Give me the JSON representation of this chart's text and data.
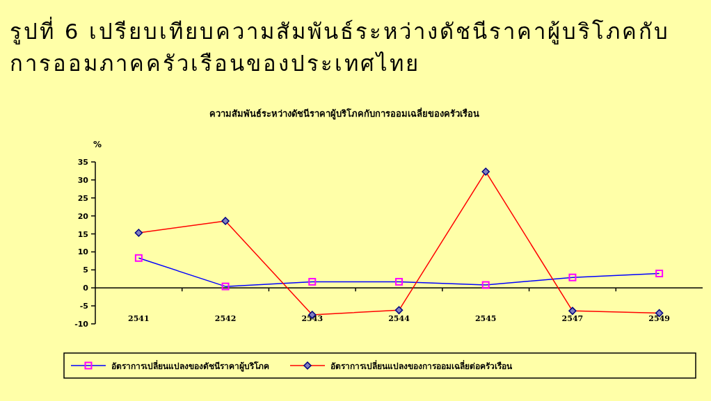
{
  "chart_data": {
    "type": "line",
    "title": "รูปที่ 6  เปรียบเทียบความสัมพันธ์ระหว่างดัชนีราคาผู้บริโภคกับการออมภาคครัวเรือนของประเทศไทย",
    "subtitle": "ความสัมพันธ์ระหว่างดัชนีราคาผู้บริโภคกับการออมเฉลี่ยของครัวเรือน",
    "ylabel": "%",
    "categories": [
      "2541",
      "2542",
      "2543",
      "2544",
      "2545",
      "2547",
      "2549"
    ],
    "series": [
      {
        "name": "อัตราการเปลี่ยนแปลงของดัชนีราคาผู้บริโภค",
        "color": "#0000ff",
        "marker": "square",
        "values": [
          8.3,
          0.4,
          1.7,
          1.7,
          0.8,
          2.9,
          4.0
        ]
      },
      {
        "name": "อัตราการเปลี่ยนแปลงของการออมเฉลี่ยต่อครัวเรือน",
        "color": "#ff0000",
        "marker": "diamond",
        "values": [
          15.3,
          18.6,
          -7.5,
          -6.2,
          32.3,
          -6.4,
          -7.0
        ]
      }
    ],
    "ylim": [
      -10,
      35
    ],
    "yticks": [
      -10,
      -5,
      0,
      5,
      10,
      15,
      20,
      25,
      30,
      35
    ],
    "legend": "bottom",
    "line_style": "solid"
  }
}
